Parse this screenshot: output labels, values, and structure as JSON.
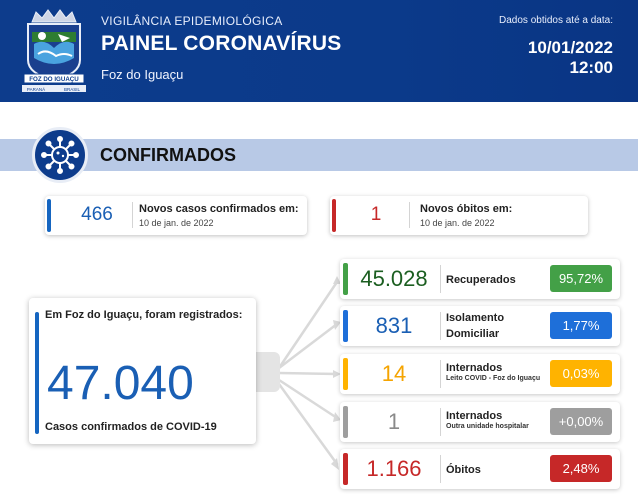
{
  "header": {
    "subtitle": "VIGILÂNCIA EPIDEMIOLÓGICA",
    "title": "PAINEL CORONAVÍRUS",
    "city": "Foz do Iguaçu",
    "date_label": "Dados obtidos até a data:",
    "date": "10/01/2022",
    "time": "12:00",
    "crest_text": "FOZ DO IGUAÇU",
    "crest_small_left": "PARANÁ",
    "crest_small_right": "BRASIL"
  },
  "section": {
    "title": "CONFIRMADOS",
    "icon": "virus-icon"
  },
  "new_cases": {
    "value": "466",
    "label": "Novos casos confirmados em:",
    "date": "10 de jan. de 2022",
    "color": "#1565c0"
  },
  "new_deaths": {
    "value": "1",
    "label": "Novos óbitos em:",
    "date": "10 de jan. de 2022",
    "color": "#c62828"
  },
  "main": {
    "label": "Em Foz do Iguaçu, foram registrados:",
    "value": "47.040",
    "footer": "Casos confirmados de COVID-19"
  },
  "rows": [
    {
      "value": "45.028",
      "label": "Recuperados",
      "sublabel": "",
      "pct": "95,72%",
      "color": "#43a047",
      "num_color": "#1b5e20"
    },
    {
      "value": "831",
      "label": "Isolamento",
      "label2": "Domiciliar",
      "sublabel": "",
      "pct": "1,77%",
      "color": "#1e6fd9",
      "num_color": "#1a5fb4"
    },
    {
      "value": "14",
      "label": "Internados",
      "sublabel": "Leito COVID - Foz do Iguaçu",
      "pct": "0,03%",
      "color": "#ffb300",
      "num_color": "#f5a400"
    },
    {
      "value": "1",
      "label": "Internados",
      "sublabel": "Outra unidade hospitalar",
      "pct": "+0,00%",
      "color": "#9e9e9e",
      "num_color": "#8a8a8a"
    },
    {
      "value": "1.166",
      "label": "Óbitos",
      "sublabel": "",
      "pct": "2,48%",
      "color": "#c62828",
      "num_color": "#c62828"
    }
  ]
}
